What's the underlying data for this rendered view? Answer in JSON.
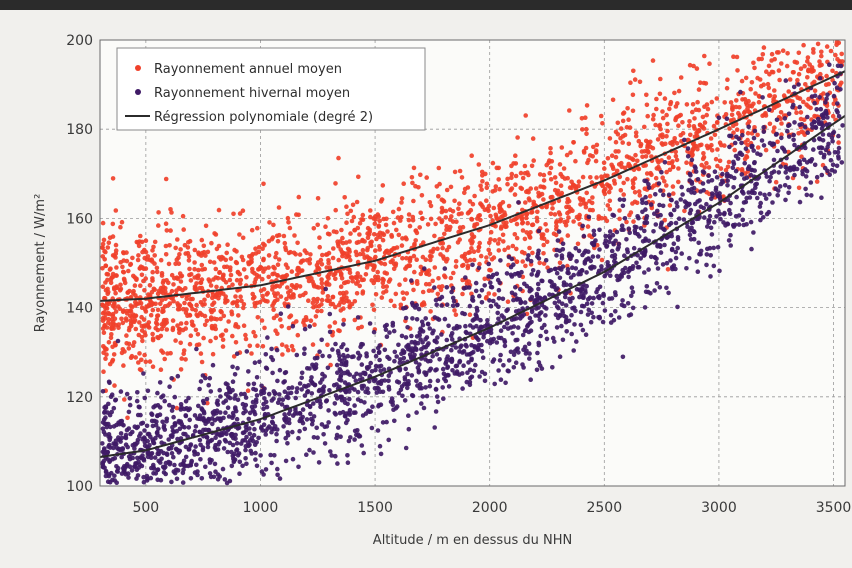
{
  "chart_data": {
    "type": "scatter",
    "title": "",
    "xlabel": "Altitude / m en dessus du NHN",
    "ylabel": "Rayonnement / W/m²",
    "xlim": [
      300,
      3550
    ],
    "ylim": [
      100,
      200
    ],
    "x_ticks": [
      500,
      1000,
      1500,
      2000,
      2500,
      3000,
      3500
    ],
    "y_ticks": [
      100,
      120,
      140,
      160,
      180,
      200
    ],
    "grid": true,
    "legend_position": "top-left",
    "series": [
      {
        "name": "Rayonnement annuel moyen",
        "kind": "points",
        "color": "#f0402a",
        "trend": [
          [
            300,
            141.5
          ],
          [
            500,
            142.0
          ],
          [
            1000,
            145.0
          ],
          [
            1500,
            150.5
          ],
          [
            2000,
            158.5
          ],
          [
            2500,
            168.5
          ],
          [
            3000,
            180.0
          ],
          [
            3550,
            193.0
          ]
        ],
        "spread": 9
      },
      {
        "name": "Rayonnement hivernal moyen",
        "kind": "points",
        "color": "#3f1a66",
        "trend": [
          [
            300,
            106.5
          ],
          [
            500,
            108.0
          ],
          [
            1000,
            115.0
          ],
          [
            1500,
            124.5
          ],
          [
            2000,
            135.5
          ],
          [
            2500,
            148.0
          ],
          [
            3000,
            163.5
          ],
          [
            3550,
            183.0
          ]
        ],
        "spread": 8
      },
      {
        "name": "Régression polynomiale (degré 2)",
        "kind": "line",
        "color": "#2b2b2b",
        "curves": [
          [
            [
              300,
              141.5
            ],
            [
              500,
              142.0
            ],
            [
              1000,
              145.0
            ],
            [
              1500,
              150.5
            ],
            [
              2000,
              158.5
            ],
            [
              2500,
              168.5
            ],
            [
              3000,
              180.0
            ],
            [
              3550,
              193.0
            ]
          ],
          [
            [
              300,
              106.5
            ],
            [
              500,
              108.0
            ],
            [
              1000,
              115.0
            ],
            [
              1500,
              124.5
            ],
            [
              2000,
              135.5
            ],
            [
              2500,
              148.0
            ],
            [
              3000,
              163.5
            ],
            [
              3550,
              183.0
            ]
          ]
        ]
      }
    ]
  }
}
